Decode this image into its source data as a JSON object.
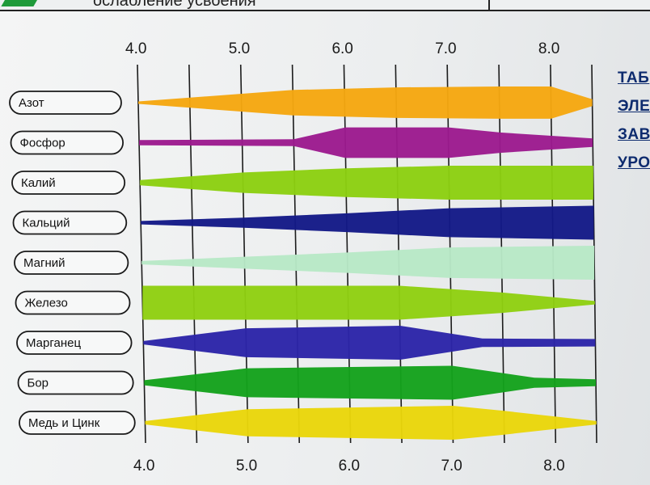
{
  "header": {
    "text": "ослабление усвоения"
  },
  "side_note": {
    "lines": [
      "ТАБ",
      "ЭЛЕ",
      "ЗАВ",
      "УРО"
    ]
  },
  "chart_data": {
    "type": "area",
    "x_ticks_top": [
      "4.0",
      "5.0",
      "6.0",
      "7.0",
      "8.0"
    ],
    "x_ticks_bottom": [
      "4.0",
      "5.0",
      "6.0",
      "7.0",
      "8.0"
    ],
    "xlim": [
      4.0,
      8.4
    ],
    "grid": true,
    "series": [
      {
        "name": "Азот",
        "color": "#f5a711",
        "profile": [
          [
            4.0,
            0
          ],
          [
            5.5,
            0.75
          ],
          [
            6.5,
            0.9
          ],
          [
            7.5,
            0.95
          ],
          [
            8.0,
            0.95
          ],
          [
            8.4,
            0.2
          ]
        ]
      },
      {
        "name": "Фосфор",
        "color": "#9c1b8e",
        "profile": [
          [
            4.0,
            0.15
          ],
          [
            5.5,
            0.2
          ],
          [
            6.0,
            0.9
          ],
          [
            7.0,
            0.9
          ],
          [
            7.5,
            0.6
          ],
          [
            8.4,
            0.25
          ]
        ]
      },
      {
        "name": "Калий",
        "color": "#8ccf12",
        "profile": [
          [
            4.0,
            0.15
          ],
          [
            5.0,
            0.6
          ],
          [
            6.0,
            0.85
          ],
          [
            7.0,
            1.0
          ],
          [
            8.4,
            1.0
          ]
        ]
      },
      {
        "name": "Кальций",
        "color": "#141a87",
        "profile": [
          [
            4.0,
            0.1
          ],
          [
            5.0,
            0.3
          ],
          [
            6.0,
            0.55
          ],
          [
            7.0,
            0.85
          ],
          [
            8.4,
            1.0
          ]
        ]
      },
      {
        "name": "Магний",
        "color": "#b8e8c6",
        "profile": [
          [
            4.0,
            0.1
          ],
          [
            5.0,
            0.35
          ],
          [
            6.0,
            0.6
          ],
          [
            7.0,
            0.9
          ],
          [
            8.4,
            1.0
          ]
        ]
      },
      {
        "name": "Железо",
        "color": "#8fd012",
        "profile": [
          [
            4.0,
            1.0
          ],
          [
            6.5,
            1.0
          ],
          [
            7.5,
            0.6
          ],
          [
            8.4,
            0.1
          ]
        ]
      },
      {
        "name": "Марганец",
        "color": "#2c25a8",
        "profile": [
          [
            4.0,
            0.1
          ],
          [
            5.0,
            0.85
          ],
          [
            6.5,
            1.0
          ],
          [
            7.3,
            0.25
          ],
          [
            8.4,
            0.22
          ]
        ]
      },
      {
        "name": "Бор",
        "color": "#15a21d",
        "profile": [
          [
            4.0,
            0.15
          ],
          [
            5.0,
            0.85
          ],
          [
            7.0,
            1.0
          ],
          [
            7.8,
            0.3
          ],
          [
            8.4,
            0.2
          ]
        ]
      },
      {
        "name": "Медь и Цинк",
        "color": "#e9d60b",
        "profile": [
          [
            4.0,
            0.1
          ],
          [
            5.0,
            0.8
          ],
          [
            7.0,
            1.0
          ],
          [
            7.5,
            0.7
          ],
          [
            8.4,
            0.1
          ]
        ]
      }
    ]
  }
}
